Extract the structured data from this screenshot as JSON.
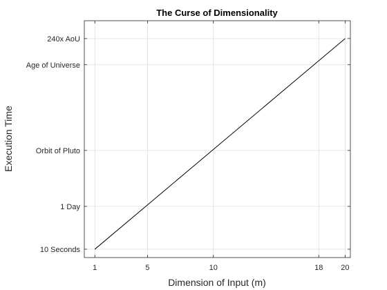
{
  "chart_data": {
    "type": "line",
    "title": "The Curse of Dimensionality",
    "xlabel": "Dimension of Input (m)",
    "ylabel": "Execution Time",
    "x_ticks": [
      1,
      5,
      10,
      18,
      20
    ],
    "y_ticks": [
      {
        "value": 0,
        "label": "10 Seconds"
      },
      {
        "value": 3.6,
        "label": "1 Day"
      },
      {
        "value": 8.3,
        "label": "Orbit of Pluto"
      },
      {
        "value": 15.5,
        "label": "Age of Universe"
      },
      {
        "value": 17.7,
        "label": "240x AoU"
      }
    ],
    "xlim": [
      0.2,
      20.4
    ],
    "ylim": [
      -0.7,
      19.2
    ],
    "grid": true,
    "series": [
      {
        "x": [
          1,
          20
        ],
        "y": [
          0,
          17.7
        ]
      }
    ],
    "colors": {
      "line": "#000000",
      "grid": "#dfdfdf",
      "axes": "#262626"
    }
  }
}
